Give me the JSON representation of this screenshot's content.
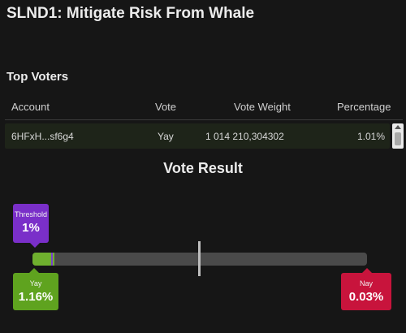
{
  "header": {
    "title": "SLND1: Mitigate Risk From Whale"
  },
  "top_voters": {
    "title": "Top Voters",
    "columns": [
      "Account",
      "Vote",
      "Vote Weight",
      "Percentage"
    ],
    "rows": [
      {
        "account": "6HFxH...sf6g4",
        "vote": "Yay",
        "vote_weight": "1 014 210,304302",
        "percentage": "1.01%"
      }
    ]
  },
  "vote_result": {
    "title": "Vote Result",
    "threshold": {
      "label": "Threshold",
      "value": "1%",
      "fraction": 0.01
    },
    "yay": {
      "label": "Yay",
      "value": "1.16%",
      "fraction": 0.0116
    },
    "nay": {
      "label": "Nay",
      "value": "0.03%",
      "fraction": 0.0003
    }
  },
  "colors": {
    "background": "#161616",
    "yay": "#5fa31f",
    "nay": "#c8143c",
    "threshold": "#7a2fc9",
    "track": "#4a4a4a"
  }
}
